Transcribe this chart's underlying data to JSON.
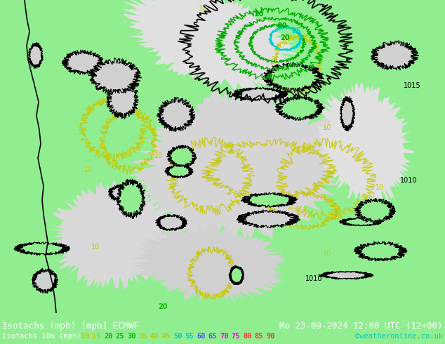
{
  "title_left": "Isotachs (mph) [mph] ECMWF",
  "title_right": "Mo 23-09-2024 12:00 UTC (12+00)",
  "subtitle_left": "Isotachs 10m (mph)",
  "credit": "©weatheronline.co.uk",
  "legend_values": [
    "10",
    "15",
    "20",
    "25",
    "30",
    "35",
    "40",
    "45",
    "50",
    "55",
    "60",
    "65",
    "70",
    "75",
    "80",
    "85",
    "90"
  ],
  "legend_colors": [
    "#c8c800",
    "#c8c800",
    "#00bb00",
    "#00bb00",
    "#00bb00",
    "#c8c800",
    "#c8c800",
    "#c8c800",
    "#00cccc",
    "#00cccc",
    "#5555ff",
    "#5555ff",
    "#ee00ee",
    "#ee00ee",
    "#ff3333",
    "#ff3333",
    "#ff3333"
  ],
  "land_color": "#90ee90",
  "sea_color": "#d8d8d8",
  "bg_color": "#90ee90",
  "bottom_bg": "#000000",
  "font_size_title": 9,
  "font_size_legend": 7.5
}
